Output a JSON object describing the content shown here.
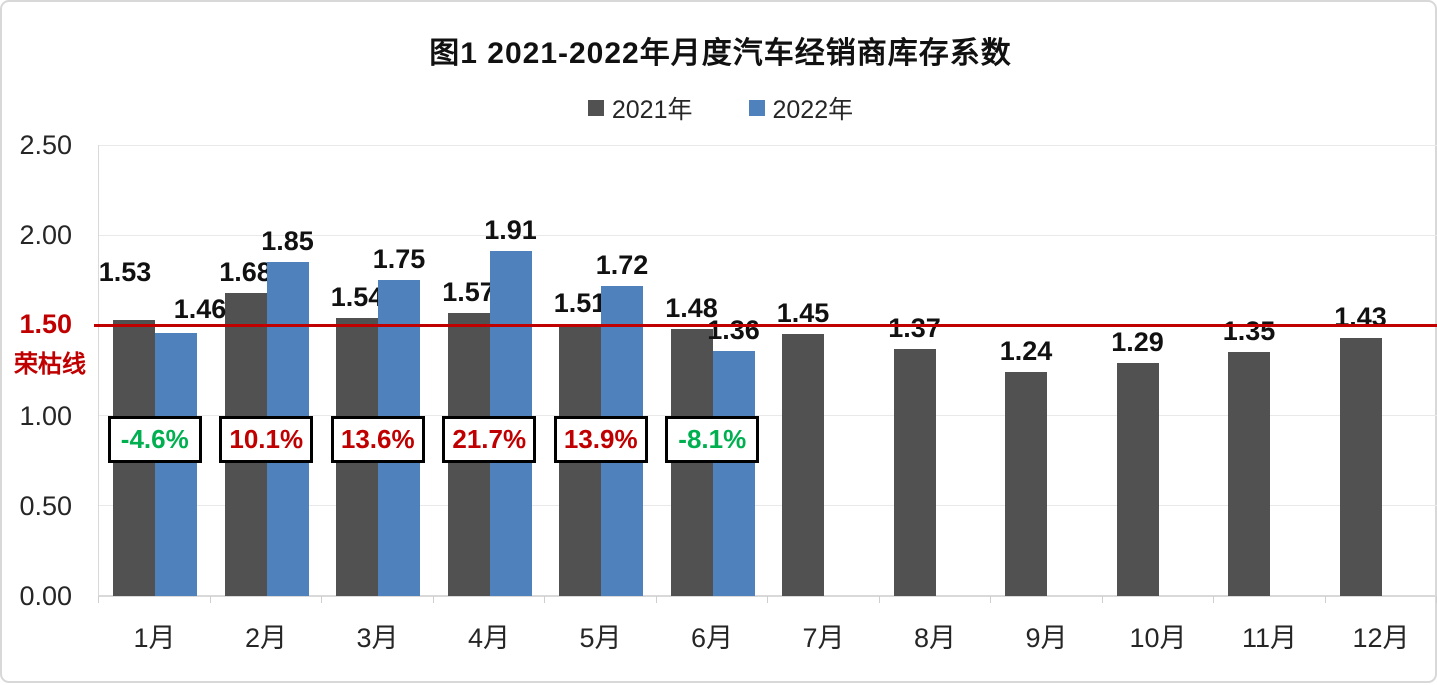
{
  "figure": {
    "title": "图1  2021-2022年月度汽车经销商库存系数"
  },
  "legend": [
    {
      "label": "2021年",
      "color": "#515151"
    },
    {
      "label": "2022年",
      "color": "#4F81BD"
    }
  ],
  "chart_data": {
    "type": "bar",
    "title": "图1  2021-2022年月度汽车经销商库存系数",
    "categories": [
      "1月",
      "2月",
      "3月",
      "4月",
      "5月",
      "6月",
      "7月",
      "8月",
      "9月",
      "10月",
      "11月",
      "12月"
    ],
    "series": [
      {
        "name": "2021年",
        "color": "#515151",
        "values": [
          1.53,
          1.68,
          1.54,
          1.57,
          1.51,
          1.48,
          1.45,
          1.37,
          1.24,
          1.29,
          1.35,
          1.43
        ]
      },
      {
        "name": "2022年",
        "color": "#4F81BD",
        "values": [
          1.46,
          1.85,
          1.75,
          1.91,
          1.72,
          1.36,
          null,
          null,
          null,
          null,
          null,
          null
        ]
      }
    ],
    "yoy_change_labels": [
      {
        "category": "1月",
        "text": "-4.6%",
        "color": "#00B050"
      },
      {
        "category": "2月",
        "text": "10.1%",
        "color": "#C00000"
      },
      {
        "category": "3月",
        "text": "13.6%",
        "color": "#C00000"
      },
      {
        "category": "4月",
        "text": "21.7%",
        "color": "#C00000"
      },
      {
        "category": "5月",
        "text": "13.9%",
        "color": "#C00000"
      },
      {
        "category": "6月",
        "text": "-8.1%",
        "color": "#00B050"
      }
    ],
    "reference_line": {
      "value": 1.5,
      "label": "1.50",
      "sublabel": "荣枯线",
      "color": "#C00000"
    },
    "ylim": [
      0,
      2.5
    ],
    "yticks": [
      0.0,
      0.5,
      1.0,
      1.5,
      2.0,
      2.5
    ],
    "ytick_labels": [
      "0.00",
      "0.50",
      "1.00",
      "1.50",
      "2.00",
      "2.50"
    ],
    "xlabel": "",
    "ylabel": "",
    "grid": true,
    "legend_position": "top"
  }
}
